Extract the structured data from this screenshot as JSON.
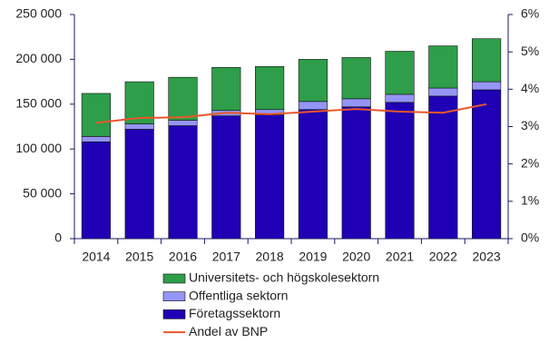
{
  "chart_data": {
    "type": "bar",
    "stacked": true,
    "categories": [
      "2014",
      "2015",
      "2016",
      "2017",
      "2018",
      "2019",
      "2020",
      "2021",
      "2022",
      "2023"
    ],
    "series": [
      {
        "name": "Universitets- och högskolesektorn",
        "color": "#2e9e4a",
        "values": [
          48,
          47,
          48,
          48,
          48,
          47,
          46,
          48,
          47,
          48
        ]
      },
      {
        "name": "Offentliga sektorn",
        "color": "#9595f5",
        "values": [
          6,
          6,
          6,
          6,
          6,
          9,
          9,
          9,
          9,
          9
        ]
      },
      {
        "name": "Företagssektorn",
        "color": "#1f00b5",
        "values": [
          108,
          122,
          126,
          137,
          138,
          144,
          147,
          152,
          159,
          166
        ]
      },
      {
        "name": "Andel av BNP",
        "type": "line",
        "axis": "y2",
        "color": "#e8572a",
        "values": [
          3.1,
          3.23,
          3.25,
          3.37,
          3.33,
          3.4,
          3.47,
          3.4,
          3.37,
          3.6
        ]
      }
    ],
    "ylim": [
      0,
      250
    ],
    "yticks": [
      {
        "value": 0,
        "label": "0"
      },
      {
        "value": 50,
        "label": "50 000"
      },
      {
        "value": 100,
        "label": "100 000"
      },
      {
        "value": 150,
        "label": "150 000"
      },
      {
        "value": 200,
        "label": "200 000"
      },
      {
        "value": 250,
        "label": "250 000"
      }
    ],
    "y2lim": [
      0,
      6
    ],
    "y2ticks": [
      {
        "value": 0,
        "label": "0%"
      },
      {
        "value": 1,
        "label": "1%"
      },
      {
        "value": 2,
        "label": "2%"
      },
      {
        "value": 3,
        "label": "3%"
      },
      {
        "value": 4,
        "label": "4%"
      },
      {
        "value": 5,
        "label": "5%"
      },
      {
        "value": 6,
        "label": "6%"
      }
    ]
  }
}
